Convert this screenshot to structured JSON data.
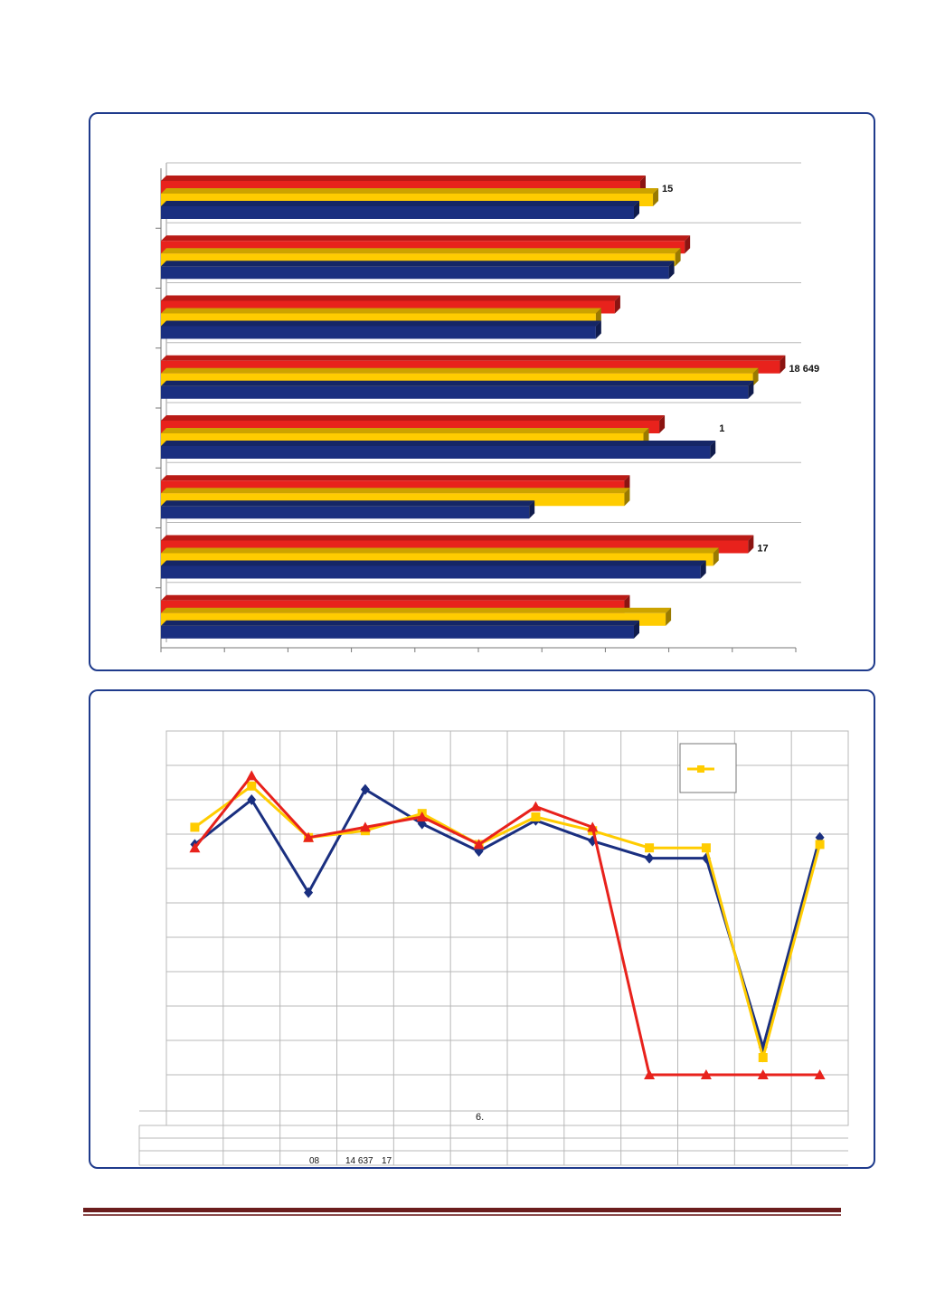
{
  "colors": {
    "red": "#e8221c",
    "yellow": "#ffcc00",
    "blue": "#1a2f80",
    "frame": "#1f3b8c",
    "grid": "#b8b8b8",
    "rule": "#6b1d1d"
  },
  "chart_data": [
    {
      "type": "bar",
      "orientation": "horizontal",
      "style": "3d",
      "grid": true,
      "series": [
        {
          "values": [
            15100,
            16500,
            14300,
            19500,
            15700,
            14600,
            18500,
            14600
          ]
        },
        {
          "values": [
            15500,
            16200,
            13700,
            18649,
            15200,
            14600,
            17400,
            15900
          ]
        },
        {
          "values": [
            14900,
            16000,
            13700,
            18500,
            17300,
            11600,
            17000,
            14900
          ]
        }
      ],
      "xlim": [
        0,
        20000
      ],
      "data_labels": [
        {
          "category_index": 0,
          "text": "15"
        },
        {
          "category_index": 3,
          "text": "18 649"
        },
        {
          "category_index": 4,
          "text": "1"
        },
        {
          "category_index": 6,
          "text": "17"
        }
      ]
    },
    {
      "type": "line",
      "grid": true,
      "points_count": 12,
      "ylim": [
        0,
        100
      ],
      "series": [
        {
          "marker": "diamond",
          "values": [
            67,
            80,
            53,
            83,
            73,
            65,
            74,
            68,
            63,
            63,
            8,
            69
          ]
        },
        {
          "marker": "square",
          "values": [
            72,
            84,
            69,
            71,
            76,
            67,
            75,
            71,
            66,
            66,
            5,
            67
          ]
        },
        {
          "marker": "triangle",
          "values": [
            66,
            87,
            69,
            72,
            75,
            67,
            78,
            72,
            0,
            0,
            0,
            0
          ]
        }
      ],
      "table_fragments": [
        "6.",
        "08",
        "14 637",
        "17"
      ]
    }
  ]
}
